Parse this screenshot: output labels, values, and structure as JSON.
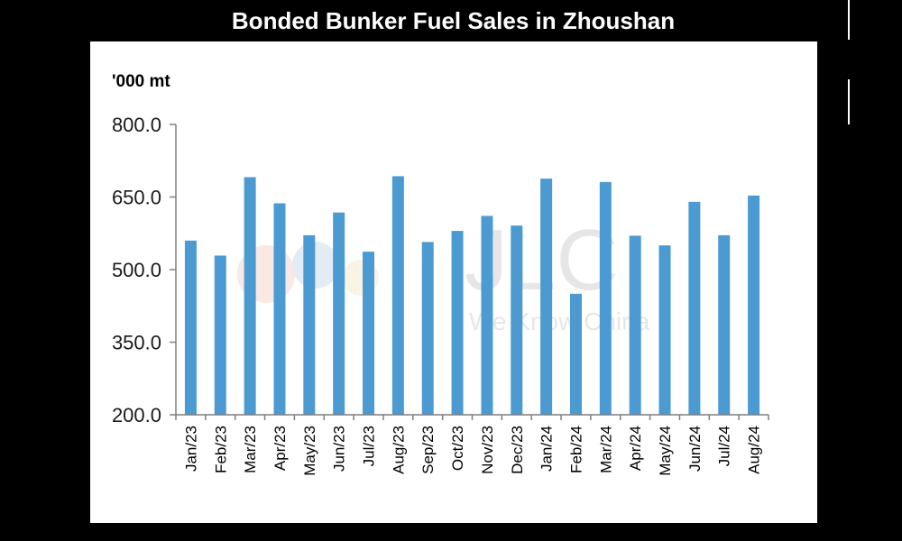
{
  "header": {
    "title": "Bonded Bunker Fuel Sales in Zhoushan"
  },
  "watermark": {
    "logo_text": "JLC",
    "tagline": "We Know China"
  },
  "colors": {
    "bar": "#4b9ad2",
    "axis": "#7f7f7f",
    "background": "#ffffff",
    "frame": "#000000"
  },
  "chart_data": {
    "type": "bar",
    "title": "Bonded Bunker Fuel Sales in Zhoushan",
    "ylabel": "'000 mt",
    "xlabel": "",
    "ylim": [
      200,
      800
    ],
    "yticks": [
      "800.0",
      "650.0",
      "500.0",
      "350.0",
      "200.0"
    ],
    "ytick_values": [
      800,
      650,
      500,
      350,
      200
    ],
    "grid": false,
    "categories": [
      "Jan/23",
      "Feb/23",
      "Mar/23",
      "Apr/23",
      "May/23",
      "Jun/23",
      "Jul/23",
      "Aug/23",
      "Sep/23",
      "Oct/23",
      "Nov/23",
      "Dec/23",
      "Jan/24",
      "Feb/24",
      "Mar/24",
      "Apr/24",
      "May/24",
      "Jun/24",
      "Jul/24",
      "Aug/24"
    ],
    "values": [
      560,
      529,
      691,
      637,
      571,
      618,
      537,
      693,
      557,
      580,
      611,
      591,
      688,
      450,
      681,
      570,
      550,
      640,
      571,
      653
    ]
  }
}
